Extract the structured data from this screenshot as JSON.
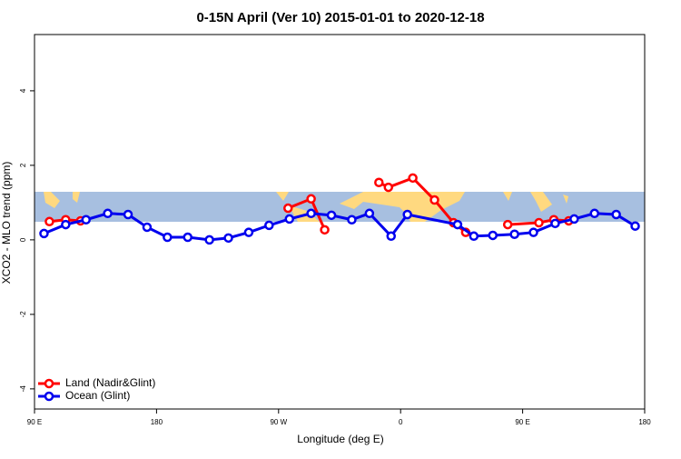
{
  "chart_data": {
    "type": "line",
    "title": "0-15N April (Ver 10)   2015-01-01 to 2020-12-18",
    "x_label": "Longitude (deg E)",
    "y_label": "XCO2 - MLO trend (ppm)",
    "xlim": [
      90,
      540
    ],
    "ylim": [
      -4.54,
      5.51
    ],
    "xticks": [
      {
        "value": 90,
        "label": "90 E"
      },
      180,
      {
        "value": 270,
        "label": "90 W"
      },
      {
        "value": 360,
        "label": "0"
      },
      {
        "value": 450,
        "label": "90 E"
      },
      {
        "value": 540,
        "label": "180"
      }
    ],
    "yticks": [
      {
        "value": -4,
        "label": "-4"
      },
      {
        "value": -2,
        "label": "-2"
      },
      0,
      2,
      4
    ],
    "legend_position": "bottom-left",
    "series": [
      {
        "name": "Land (Nadir&Glint)",
        "color": "#ff0000",
        "x": [
          101,
          113,
          124,
          200,
          277,
          294,
          304,
          325,
          344,
          351,
          369,
          385,
          399,
          408,
          425,
          439,
          462,
          473,
          484
        ],
        "values": [
          0.49,
          0.54,
          0.51,
          null,
          0.85,
          1.1,
          0.27,
          null,
          1.54,
          1.41,
          1.66,
          1.07,
          0.46,
          0.2,
          null,
          0.41,
          0.46,
          0.54,
          0.51
        ]
      },
      {
        "name": "Ocean (Glint)",
        "color": "#0000ee",
        "x": [
          97,
          113,
          128,
          144,
          159,
          173,
          188,
          203,
          219,
          233,
          248,
          263,
          278,
          294,
          309,
          324,
          337,
          353,
          365,
          402,
          414,
          428,
          444,
          458,
          474,
          488,
          503,
          519,
          533
        ],
        "values": [
          0.17,
          0.41,
          0.54,
          0.71,
          0.68,
          0.34,
          0.07,
          0.07,
          0,
          0.05,
          0.2,
          0.39,
          0.56,
          0.71,
          0.66,
          0.54,
          0.71,
          0.1,
          0.68,
          0.41,
          0.1,
          0.12,
          0.15,
          0.2,
          0.44,
          0.56,
          0.71,
          0.68,
          0.37
        ]
      }
    ]
  }
}
